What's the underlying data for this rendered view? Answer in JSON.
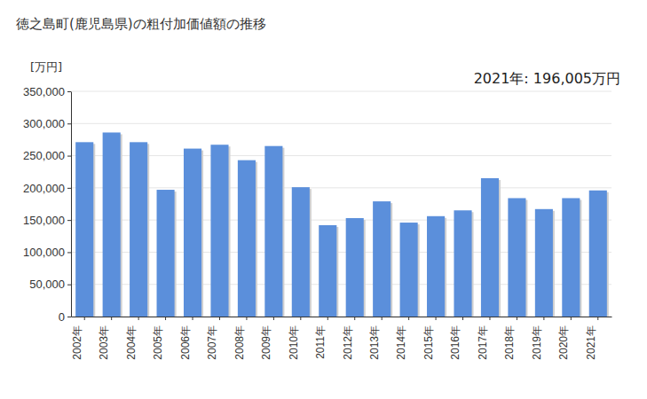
{
  "chart_data": {
    "type": "bar",
    "title": "徳之島町(鹿児島県)の粗付加価値額の推移",
    "ylabel": "[万円]",
    "annotation": "2021年: 196,005万円",
    "categories": [
      "2002年",
      "2003年",
      "2004年",
      "2005年",
      "2006年",
      "2007年",
      "2008年",
      "2009年",
      "2010年",
      "2011年",
      "2012年",
      "2013年",
      "2014年",
      "2015年",
      "2016年",
      "2017年",
      "2018年",
      "2019年",
      "2020年",
      "2021年"
    ],
    "values": [
      271000,
      286000,
      271000,
      197000,
      261000,
      267000,
      243000,
      265000,
      201000,
      142000,
      153000,
      179000,
      146000,
      156000,
      165000,
      215000,
      184000,
      167000,
      184000,
      196005
    ],
    "color": "#5b8fdb",
    "ylim": [
      0,
      350000
    ],
    "yticks": [
      0,
      {
        "value": 50000,
        "label": "50,000"
      },
      {
        "value": 100000,
        "label": "100,000"
      },
      {
        "value": 150000,
        "label": "150,000"
      },
      {
        "value": 200000,
        "label": "200,000"
      },
      {
        "value": 250000,
        "label": "250,000"
      },
      {
        "value": 300000,
        "label": "300,000"
      },
      {
        "value": 350000,
        "label": "350,000"
      }
    ],
    "grid": true
  }
}
